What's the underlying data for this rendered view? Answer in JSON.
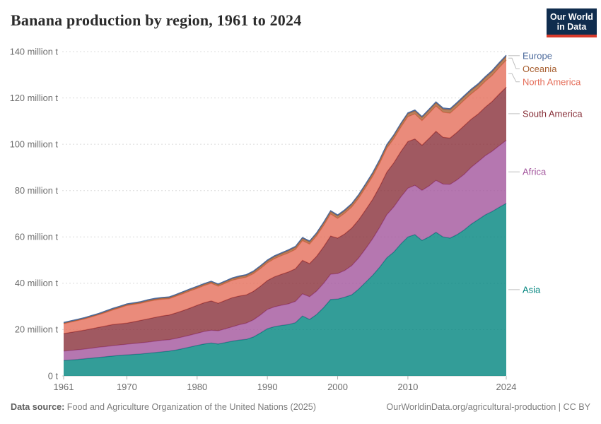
{
  "header": {
    "title": "Banana production by region, 1961 to 2024",
    "logo_line1": "Our World",
    "logo_line2": "in Data"
  },
  "colors": {
    "logo_bg": "#102D4E",
    "logo_red": "#D93A2B",
    "title_text": "#2b2b2b",
    "axis_text": "#6e6e6e",
    "gridline": "#dcdcdc",
    "zero_line": "#c8c8c8",
    "tick_mark": "#b0b0b0",
    "connector": "#bfbfbf",
    "footer_text": "#7d7d7d"
  },
  "chart_data": {
    "type": "area",
    "stacked": true,
    "title": "Banana production by region, 1961 to 2024",
    "xlabel": "",
    "ylabel": "",
    "unit": "million tonnes",
    "ylim": [
      0,
      140
    ],
    "ytick_step": 20,
    "ytick_suffix": " million t",
    "ytick_zero_label": "0 t",
    "grid": "horizontal-dashed",
    "legend_position": "right",
    "years_start": 1961,
    "years_end": 2024,
    "xticks": [
      1961,
      1970,
      1980,
      1990,
      2000,
      2010,
      2024
    ],
    "series": [
      {
        "name": "Asia",
        "color": "#00847E",
        "values": [
          6.7,
          6.9,
          7.1,
          7.4,
          7.7,
          8.0,
          8.3,
          8.6,
          8.9,
          9.1,
          9.3,
          9.5,
          9.8,
          10.1,
          10.4,
          10.7,
          11.2,
          11.8,
          12.5,
          13.2,
          13.8,
          14.2,
          13.8,
          14.4,
          15.0,
          15.5,
          15.8,
          16.8,
          18.5,
          20.4,
          21.3,
          21.8,
          22.2,
          23.0,
          25.9,
          24.4,
          26.5,
          29.5,
          33.0,
          33.2,
          34.0,
          35.0,
          37.5,
          40.5,
          43.5,
          47.0,
          51.0,
          53.5,
          57.0,
          60.0,
          61.0,
          58.5,
          60.0,
          62.0,
          60.0,
          59.5,
          61.0,
          63.0,
          65.5,
          67.5,
          69.5,
          71.0,
          72.8,
          74.5
        ]
      },
      {
        "name": "Africa",
        "color": "#A2559C",
        "values": [
          4.0,
          4.1,
          4.2,
          4.2,
          4.3,
          4.4,
          4.4,
          4.5,
          4.5,
          4.6,
          4.7,
          4.8,
          4.8,
          4.9,
          5.0,
          4.9,
          5.0,
          5.1,
          5.1,
          5.2,
          5.4,
          5.5,
          5.7,
          5.9,
          6.2,
          6.6,
          7.0,
          7.4,
          7.8,
          8.3,
          8.5,
          8.7,
          8.9,
          9.2,
          9.5,
          9.8,
          10.1,
          10.5,
          10.9,
          11.0,
          11.5,
          12.6,
          13.4,
          14.5,
          15.8,
          17.2,
          18.6,
          19.5,
          20.3,
          21.0,
          21.3,
          21.6,
          22.0,
          22.4,
          22.8,
          23.2,
          23.6,
          24.0,
          24.5,
          25.0,
          25.5,
          26.0,
          26.6,
          27.2
        ]
      },
      {
        "name": "South America",
        "color": "#883039",
        "values": [
          7.6,
          7.8,
          8.0,
          8.2,
          8.4,
          8.6,
          8.9,
          9.1,
          9.1,
          9.1,
          9.4,
          9.7,
          10.0,
          10.3,
          10.5,
          10.7,
          11.0,
          11.3,
          11.7,
          12.1,
          12.4,
          12.7,
          11.9,
          12.3,
          12.6,
          12.4,
          12.2,
          12.3,
          12.4,
          12.5,
          13.0,
          13.4,
          13.8,
          14.1,
          14.5,
          14.3,
          15.0,
          15.8,
          16.5,
          15.3,
          15.8,
          16.2,
          16.5,
          16.8,
          17.0,
          17.6,
          18.4,
          19.0,
          19.6,
          20.2,
          20.0,
          19.5,
          20.5,
          21.2,
          20.2,
          20.0,
          20.6,
          21.0,
          20.8,
          20.6,
          21.0,
          21.5,
          22.3,
          23.0
        ]
      },
      {
        "name": "North America",
        "color": "#E56E5A",
        "values": [
          4.2,
          4.4,
          4.6,
          4.8,
          5.1,
          5.4,
          5.8,
          6.3,
          6.9,
          7.6,
          7.5,
          7.4,
          7.5,
          7.4,
          7.2,
          7.0,
          7.2,
          7.3,
          7.4,
          7.3,
          7.4,
          7.6,
          7.3,
          7.4,
          7.5,
          7.5,
          7.6,
          7.6,
          7.6,
          7.6,
          7.8,
          8.0,
          8.2,
          8.3,
          8.5,
          8.4,
          8.8,
          9.1,
          9.5,
          8.5,
          8.9,
          9.1,
          9.3,
          9.6,
          9.9,
          10.1,
          10.3,
          10.4,
          10.5,
          10.7,
          10.8,
          10.6,
          10.8,
          10.9,
          10.8,
          10.7,
          10.9,
          11.0,
          10.9,
          11.0,
          11.1,
          11.2,
          11.4,
          11.6
        ]
      },
      {
        "name": "Oceania",
        "color": "#A86032",
        "values": [
          0.3,
          0.3,
          0.3,
          0.3,
          0.3,
          0.3,
          0.4,
          0.4,
          0.4,
          0.4,
          0.4,
          0.4,
          0.5,
          0.5,
          0.5,
          0.5,
          0.5,
          0.6,
          0.6,
          0.6,
          0.6,
          0.6,
          0.7,
          0.7,
          0.7,
          0.8,
          0.8,
          0.8,
          0.9,
          0.9,
          0.9,
          0.9,
          1.0,
          1.0,
          1.0,
          1.0,
          1.0,
          1.1,
          1.1,
          1.1,
          1.1,
          1.1,
          1.2,
          1.2,
          1.2,
          1.2,
          1.2,
          1.3,
          1.3,
          1.3,
          1.3,
          1.4,
          1.4,
          1.4,
          1.4,
          1.5,
          1.5,
          1.5,
          1.6,
          1.6,
          1.6,
          1.7,
          1.7,
          1.7
        ]
      },
      {
        "name": "Europe",
        "color": "#4C6A9C",
        "values": [
          0.3,
          0.3,
          0.3,
          0.3,
          0.3,
          0.3,
          0.3,
          0.3,
          0.3,
          0.3,
          0.3,
          0.3,
          0.3,
          0.3,
          0.3,
          0.3,
          0.3,
          0.3,
          0.3,
          0.3,
          0.3,
          0.3,
          0.3,
          0.3,
          0.3,
          0.35,
          0.35,
          0.35,
          0.35,
          0.35,
          0.35,
          0.35,
          0.35,
          0.35,
          0.35,
          0.35,
          0.35,
          0.35,
          0.35,
          0.4,
          0.4,
          0.4,
          0.4,
          0.4,
          0.4,
          0.4,
          0.4,
          0.4,
          0.4,
          0.4,
          0.4,
          0.4,
          0.4,
          0.4,
          0.45,
          0.45,
          0.45,
          0.45,
          0.45,
          0.45,
          0.45,
          0.45,
          0.45,
          0.45
        ]
      }
    ]
  },
  "footer": {
    "source_label": "Data source:",
    "source_text": " Food and Agriculture Organization of the United Nations (2025)",
    "credit": "OurWorldinData.org/agricultural-production | CC BY"
  }
}
